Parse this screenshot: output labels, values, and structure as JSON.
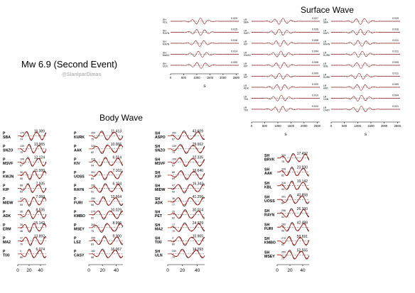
{
  "figure": {
    "title_event": "Mw 6.9 (Second Event)",
    "watermark": "@SianiparDimas",
    "title_body": "Body Wave",
    "title_surface": "Surface Wave",
    "surface_axis_unit": "s",
    "colors": {
      "observed": "#000000",
      "synthetic": "#d81e1e",
      "dashed": "#000000"
    }
  },
  "chart_data": [
    {
      "type": "line",
      "name": "Body Wave column 1",
      "component": "P",
      "xticks": [
        "0",
        "20",
        "40"
      ],
      "xlim": [
        0,
        50
      ],
      "stations": [
        {
          "station": "SBA",
          "az": "170",
          "dist": "74",
          "amp": "16.389"
        },
        {
          "station": "SNZO",
          "az": "139",
          "dist": "75",
          "amp": "13.965"
        },
        {
          "station": "MSVF",
          "az": "106",
          "dist": "67",
          "amp": "12.124"
        },
        {
          "station": "KWJN",
          "az": "30",
          "dist": "55",
          "amp": "11.000"
        },
        {
          "station": "KIP",
          "az": "68",
          "dist": "69",
          "amp": "7.935"
        },
        {
          "station": "MIDW",
          "az": "47",
          "dist": "59",
          "amp": "7.060"
        },
        {
          "station": "ADK",
          "az": "36",
          "dist": "77",
          "amp": "8.535"
        },
        {
          "station": "ERM",
          "az": "26",
          "dist": "48",
          "amp": "15.142"
        },
        {
          "station": "MA2",
          "az": "17",
          "dist": "70",
          "amp": "13.892"
        },
        {
          "station": "TIXI",
          "az": "3",
          "dist": "80",
          "amp": "6.074"
        }
      ]
    },
    {
      "type": "line",
      "name": "Body Wave column 2",
      "component": "P",
      "xticks": [
        "0",
        "20",
        "40"
      ],
      "xlim": [
        0,
        50
      ],
      "stations": [
        {
          "station": "KURK",
          "az": "354",
          "dist": "76",
          "amp": "11.413"
        },
        {
          "station": "AAK",
          "az": "328",
          "dist": "82",
          "amp": "10.066"
        },
        {
          "station": "KIV",
          "az": "315",
          "dist": "94",
          "amp": "6.014"
        },
        {
          "station": "UOSS",
          "az": "301",
          "dist": "84",
          "amp": "7.102"
        },
        {
          "station": "RAYN",
          "az": "296",
          "dist": "91",
          "amp": "6.104"
        },
        {
          "station": "FURI",
          "az": "280",
          "dist": "96",
          "amp": "12.664"
        },
        {
          "station": "KMBO",
          "az": "275",
          "dist": "92",
          "amp": "10.029"
        },
        {
          "station": "MSEY",
          "az": "269",
          "dist": "75",
          "amp": "8.996"
        },
        {
          "station": "LSZ",
          "az": "256",
          "dist": "83",
          "amp": "9.200"
        },
        {
          "station": "CASY",
          "az": "182",
          "dist": "58",
          "amp": "16.067"
        }
      ]
    },
    {
      "type": "line",
      "name": "Body Wave column 3",
      "component": "SH",
      "xticks": [
        "0",
        "20",
        "40"
      ],
      "xlim": [
        0,
        50
      ],
      "stations": [
        {
          "station": "ASPO",
          "az": "252",
          "dist": "67",
          "amp": "43.609"
        },
        {
          "station": "SNZO",
          "az": "139",
          "dist": "75",
          "amp": "29.662"
        },
        {
          "station": "MSVF",
          "az": "106",
          "dist": "67",
          "amp": "32.335"
        },
        {
          "station": "KIP",
          "az": "68",
          "dist": "69",
          "amp": "16.646"
        },
        {
          "station": "MIDW",
          "az": "47",
          "dist": "59",
          "amp": "16.343"
        },
        {
          "station": "ADK",
          "az": "36",
          "dist": "77",
          "amp": "41.256"
        },
        {
          "station": "PET",
          "az": "25",
          "dist": "62",
          "amp": "30.014"
        },
        {
          "station": "MA2",
          "az": "17",
          "dist": "70",
          "amp": "24.929"
        },
        {
          "station": "TIXI",
          "az": "3",
          "dist": "80",
          "amp": "10.965"
        },
        {
          "station": "ULN",
          "az": "330",
          "dist": "79",
          "amp": "14.093"
        }
      ]
    },
    {
      "type": "line",
      "name": "Body Wave column 4",
      "component": "SH",
      "xticks": [
        "0",
        "20",
        "40"
      ],
      "xlim": [
        0,
        50
      ],
      "stations": [
        {
          "station": "BRVK",
          "az": "333",
          "dist": "78",
          "amp": "17.432"
        },
        {
          "station": "AAK",
          "az": "328",
          "dist": "82",
          "amp": "23.930"
        },
        {
          "station": "KBL",
          "az": "316",
          "dist": "93",
          "amp": "19.142"
        },
        {
          "station": "UOSS",
          "az": "301",
          "dist": "84",
          "amp": "40.858"
        },
        {
          "station": "RAYN",
          "az": "296",
          "dist": "91",
          "amp": "26.330"
        },
        {
          "station": "FURI",
          "az": "280",
          "dist": "96",
          "amp": "42.488"
        },
        {
          "station": "KMBO",
          "az": "270",
          "dist": "92",
          "amp": "59.691"
        },
        {
          "station": "MSEY",
          "az": "269",
          "dist": "75",
          "amp": "52.555"
        }
      ]
    },
    {
      "type": "line",
      "name": "Surface Wave column 1",
      "component": "SH",
      "xticks": [
        "0",
        "500",
        "1000",
        "1500",
        "2000",
        "2500"
      ],
      "xlim": [
        0,
        2600
      ],
      "xlabel": "s",
      "stations": [
        {
          "station": "KDL",
          "az": "",
          "dist": "",
          "amp": "0.020"
        },
        {
          "station": "RAYN",
          "az": "",
          "dist": "",
          "amp": "0.015"
        },
        {
          "station": "RAYN",
          "az": "",
          "dist": "",
          "amp": "0.016"
        },
        {
          "station": "MAKZ",
          "az": "",
          "dist": "",
          "amp": "0.014"
        },
        {
          "station": "ULN",
          "az": "",
          "dist": "",
          "amp": "0.005"
        }
      ]
    },
    {
      "type": "line",
      "name": "Surface Wave column 2",
      "component": "LR",
      "xticks": [
        "0",
        "500",
        "1000",
        "1500",
        "2000",
        "2500"
      ],
      "xlim": [
        0,
        2600
      ],
      "xlabel": "s",
      "stations": [
        {
          "station": "SBA",
          "az": "",
          "dist": "",
          "amp": "0.027"
        },
        {
          "station": "KAPI",
          "az": "",
          "dist": "",
          "amp": "0.026"
        },
        {
          "station": "KIP",
          "az": "",
          "dist": "",
          "amp": "0.008"
        },
        {
          "station": "KWJN",
          "az": "",
          "dist": "",
          "amp": "0.004"
        },
        {
          "station": "KIP",
          "az": "",
          "dist": "",
          "amp": "0.008"
        },
        {
          "station": "KIP",
          "az": "",
          "dist": "",
          "amp": "0.009"
        },
        {
          "station": "ADK",
          "az": "",
          "dist": "",
          "amp": "0.020"
        },
        {
          "station": "TIXI",
          "az": "",
          "dist": "",
          "amp": "0.010"
        },
        {
          "station": "TIXI",
          "az": "",
          "dist": "",
          "amp": "0.024"
        }
      ]
    },
    {
      "type": "line",
      "name": "Surface Wave column 3",
      "component": "LR",
      "xticks": [
        "0",
        "500",
        "1000",
        "1500",
        "2000",
        "2500"
      ],
      "xlim": [
        0,
        2600
      ],
      "xlabel": "s",
      "stations": [
        {
          "station": "SBA",
          "az": "",
          "dist": "",
          "amp": "0.029"
        },
        {
          "station": "KAPI",
          "az": "",
          "dist": "",
          "amp": "0.016"
        },
        {
          "station": "RAYN",
          "az": "",
          "dist": "",
          "amp": "0.011"
        },
        {
          "station": "KURK",
          "az": "",
          "dist": "",
          "amp": "0.011"
        },
        {
          "station": "SSE",
          "az": "",
          "dist": "",
          "amp": "0.005"
        },
        {
          "station": "KURK",
          "az": "",
          "dist": "",
          "amp": "0.011"
        },
        {
          "station": "AAK",
          "az": "",
          "dist": "",
          "amp": "0.009"
        },
        {
          "station": "CAN",
          "az": "",
          "dist": "",
          "amp": "0.004"
        },
        {
          "station": "CASY",
          "az": "",
          "dist": "",
          "amp": "0.021"
        }
      ]
    }
  ]
}
